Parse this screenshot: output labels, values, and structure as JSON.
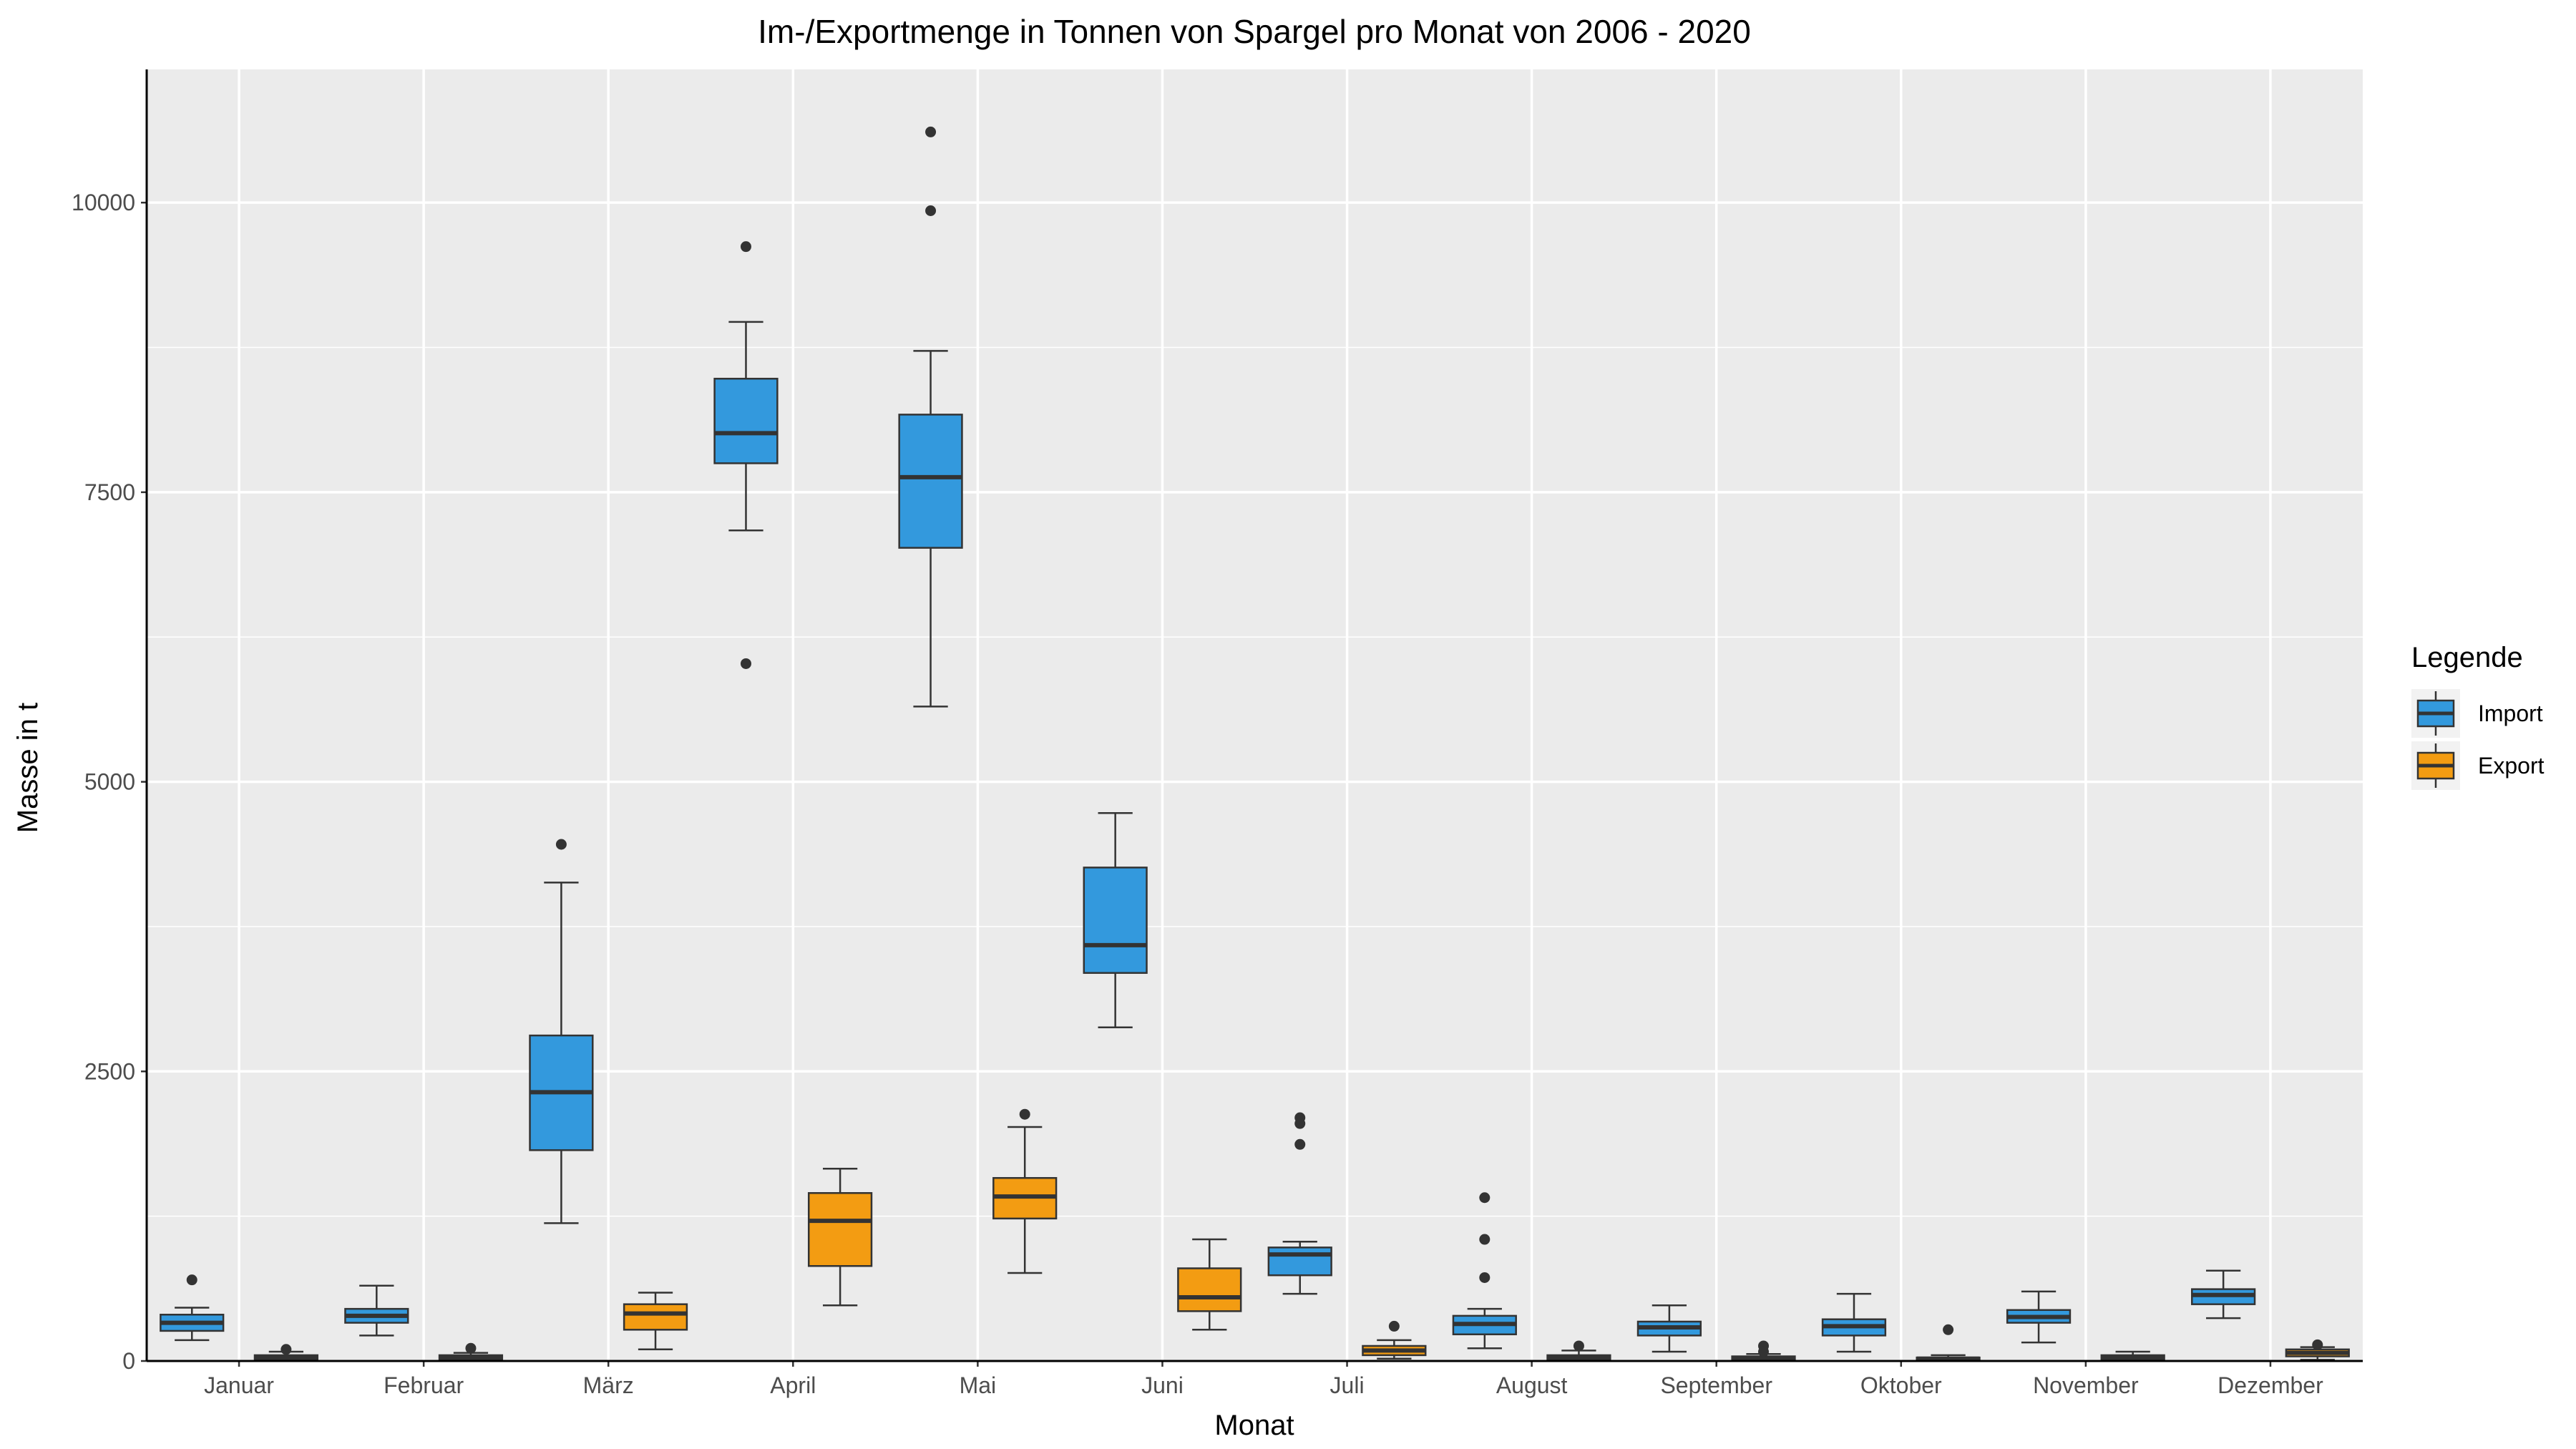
{
  "chart_data": {
    "type": "boxplot",
    "title": "Im-/Exportmenge in Tonnen von Spargel pro Monat von 2006 - 2020",
    "xlabel": "Monat",
    "ylabel": "Masse in t",
    "ylim": [
      0,
      11150
    ],
    "yticks": [
      0,
      2500,
      5000,
      7500,
      10000
    ],
    "grid": true,
    "legend": {
      "title": "Legende",
      "position": "right"
    },
    "categories": [
      "Januar",
      "Februar",
      "März",
      "April",
      "Mai",
      "Juni",
      "Juli",
      "August",
      "September",
      "Oktober",
      "November",
      "Dezember"
    ],
    "series": [
      {
        "name": "Import",
        "color": "#3399dd",
        "boxes": [
          {
            "low": 180,
            "q1": 260,
            "median": 330,
            "q3": 400,
            "high": 460,
            "outliers": [
              700
            ]
          },
          {
            "low": 220,
            "q1": 330,
            "median": 390,
            "q3": 450,
            "high": 650,
            "outliers": []
          },
          {
            "low": 1190,
            "q1": 1820,
            "median": 2320,
            "q3": 2810,
            "high": 4130,
            "outliers": [
              4460
            ]
          },
          {
            "low": 7170,
            "q1": 7750,
            "median": 8010,
            "q3": 8480,
            "high": 8970,
            "outliers": [
              9620,
              6020
            ]
          },
          {
            "low": 5650,
            "q1": 7020,
            "median": 7630,
            "q3": 8170,
            "high": 8720,
            "outliers": [
              10610,
              9930
            ]
          },
          {
            "low": 2880,
            "q1": 3350,
            "median": 3590,
            "q3": 4260,
            "high": 4730,
            "outliers": []
          },
          {
            "low": 580,
            "q1": 740,
            "median": 920,
            "q3": 980,
            "high": 1030,
            "outliers": [
              2100,
              2050,
              1870
            ]
          },
          {
            "low": 110,
            "q1": 230,
            "median": 320,
            "q3": 390,
            "high": 450,
            "outliers": [
              1410,
              1050,
              720
            ]
          },
          {
            "low": 80,
            "q1": 220,
            "median": 290,
            "q3": 340,
            "high": 480,
            "outliers": []
          },
          {
            "low": 80,
            "q1": 220,
            "median": 300,
            "q3": 360,
            "high": 580,
            "outliers": []
          },
          {
            "low": 160,
            "q1": 330,
            "median": 380,
            "q3": 440,
            "high": 600,
            "outliers": []
          },
          {
            "low": 370,
            "q1": 490,
            "median": 570,
            "q3": 620,
            "high": 780,
            "outliers": []
          }
        ]
      },
      {
        "name": "Export",
        "color": "#f39c12",
        "boxes": [
          {
            "low": 0,
            "q1": 10,
            "median": 30,
            "q3": 50,
            "high": 80,
            "outliers": [
              100
            ]
          },
          {
            "low": 0,
            "q1": 10,
            "median": 30,
            "q3": 50,
            "high": 70,
            "outliers": [
              110
            ]
          },
          {
            "low": 100,
            "q1": 270,
            "median": 410,
            "q3": 490,
            "high": 590,
            "outliers": []
          },
          {
            "low": 480,
            "q1": 820,
            "median": 1210,
            "q3": 1450,
            "high": 1660,
            "outliers": []
          },
          {
            "low": 760,
            "q1": 1230,
            "median": 1420,
            "q3": 1580,
            "high": 2020,
            "outliers": [
              2130
            ]
          },
          {
            "low": 270,
            "q1": 430,
            "median": 550,
            "q3": 800,
            "high": 1050,
            "outliers": []
          },
          {
            "low": 20,
            "q1": 50,
            "median": 90,
            "q3": 130,
            "high": 180,
            "outliers": [
              300
            ]
          },
          {
            "low": 0,
            "q1": 10,
            "median": 30,
            "q3": 50,
            "high": 90,
            "outliers": [
              130
            ]
          },
          {
            "low": 0,
            "q1": 10,
            "median": 20,
            "q3": 40,
            "high": 60,
            "outliers": [
              130,
              80
            ]
          },
          {
            "low": 0,
            "q1": 10,
            "median": 20,
            "q3": 30,
            "high": 50,
            "outliers": [
              270
            ]
          },
          {
            "low": 0,
            "q1": 10,
            "median": 30,
            "q3": 50,
            "high": 80,
            "outliers": []
          },
          {
            "low": 10,
            "q1": 40,
            "median": 70,
            "q3": 100,
            "high": 120,
            "outliers": [
              140
            ]
          }
        ]
      }
    ]
  }
}
